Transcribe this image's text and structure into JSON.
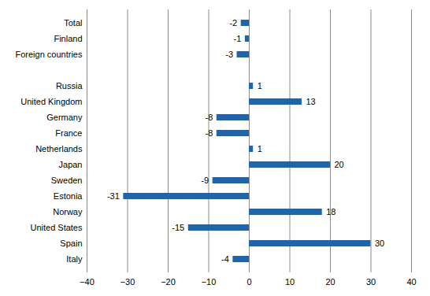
{
  "chart_data": {
    "type": "bar",
    "orientation": "horizontal",
    "categories": [
      "Total",
      "Finland",
      "Foreign countries",
      null,
      "Russia",
      "United Kingdom",
      "Germany",
      "France",
      "Netherlands",
      "Japan",
      "Sweden",
      "Estonia",
      "Norway",
      "United States",
      "Spain",
      "Italy"
    ],
    "values": [
      -2,
      -1,
      -3,
      null,
      1,
      13,
      -8,
      -8,
      1,
      20,
      -9,
      -31,
      18,
      -15,
      30,
      -4
    ],
    "color": "#1f64ad",
    "xlim": [
      -40,
      40
    ],
    "xticks": [
      -40,
      -30,
      -20,
      -10,
      0,
      10,
      20,
      30,
      40
    ],
    "grid": true,
    "data_labels": true
  }
}
